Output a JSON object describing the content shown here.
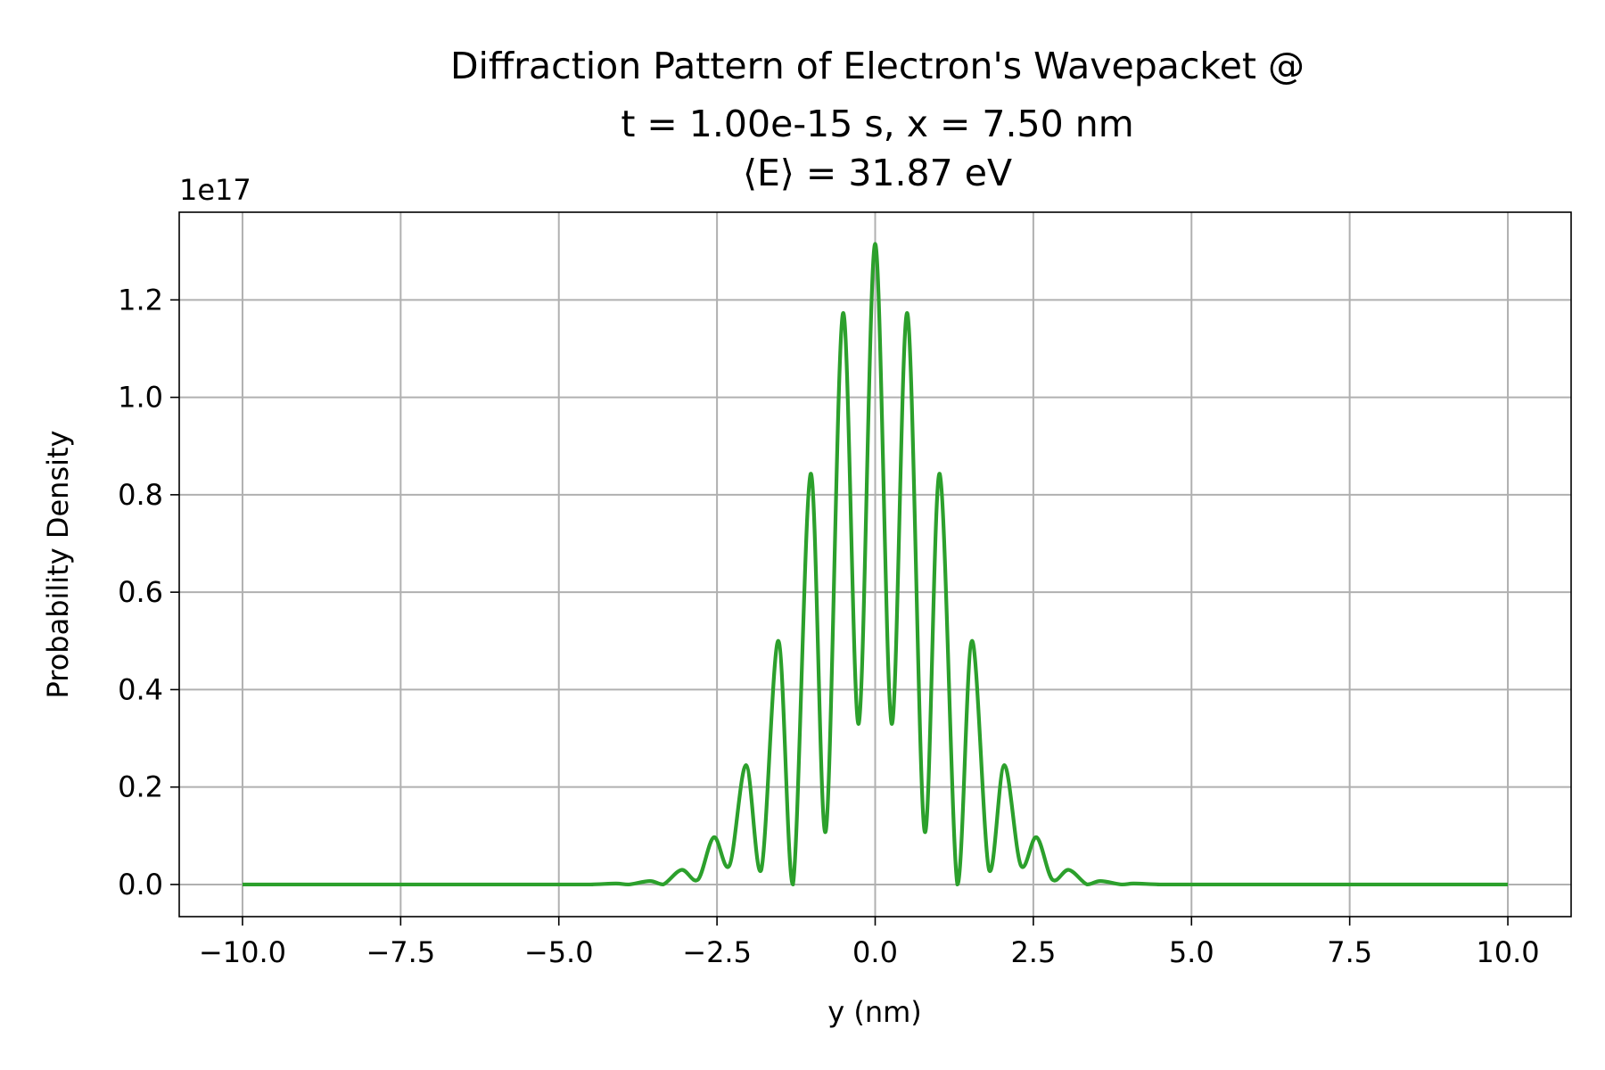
{
  "chart_data": {
    "type": "line",
    "title_lines": [
      "Diffraction Pattern of Electron's Wavepacket @",
      "t = 1.00e-15 s, x = 7.50 nm",
      "⟨E⟩ = 31.87 eV"
    ],
    "xlabel": "y (nm)",
    "ylabel": "Probability Density",
    "y_offset_label": "1e17",
    "xlim": [
      -11.0,
      11.0
    ],
    "ylim": [
      -0.066,
      1.38
    ],
    "x_ticks": [
      -10.0,
      -7.5,
      -5.0,
      -2.5,
      0.0,
      2.5,
      5.0,
      7.5,
      10.0
    ],
    "x_tick_labels": [
      "−10.0",
      "−7.5",
      "−5.0",
      "−2.5",
      "0.0",
      "2.5",
      "5.0",
      "7.5",
      "10.0"
    ],
    "y_ticks": [
      0.0,
      0.2,
      0.4,
      0.6,
      0.8,
      1.0,
      1.2
    ],
    "y_tick_labels": [
      "0.0",
      "0.2",
      "0.4",
      "0.6",
      "0.8",
      "1.0",
      "1.2"
    ],
    "grid": true,
    "line_color": "#2ca02c",
    "series": [
      {
        "x": [
          -10.0,
          -5.0,
          -4.5,
          -4.1,
          -3.9,
          -3.56,
          -3.35,
          -3.06,
          -2.8,
          -2.55,
          -2.3,
          -2.04,
          -1.8,
          -1.53,
          -1.3,
          -1.02,
          -0.78,
          -0.51,
          -0.26,
          0.0,
          0.26,
          0.51,
          0.78,
          1.02,
          1.3,
          1.53,
          1.8,
          2.04,
          2.3,
          2.55,
          2.8,
          3.06,
          3.35,
          3.56,
          3.9,
          4.1,
          4.5,
          5.0,
          10.0
        ],
        "y": [
          0.0,
          0.0,
          0.0,
          0.002,
          0.0,
          0.007,
          0.0,
          0.03,
          0.01,
          0.097,
          0.04,
          0.245,
          0.03,
          0.5,
          0.0,
          0.843,
          0.11,
          1.172,
          0.33,
          1.315,
          0.33,
          1.172,
          0.11,
          0.843,
          0.0,
          0.5,
          0.03,
          0.245,
          0.04,
          0.097,
          0.01,
          0.03,
          0.0,
          0.007,
          0.0,
          0.002,
          0.0,
          0.0,
          0.0
        ]
      }
    ]
  }
}
